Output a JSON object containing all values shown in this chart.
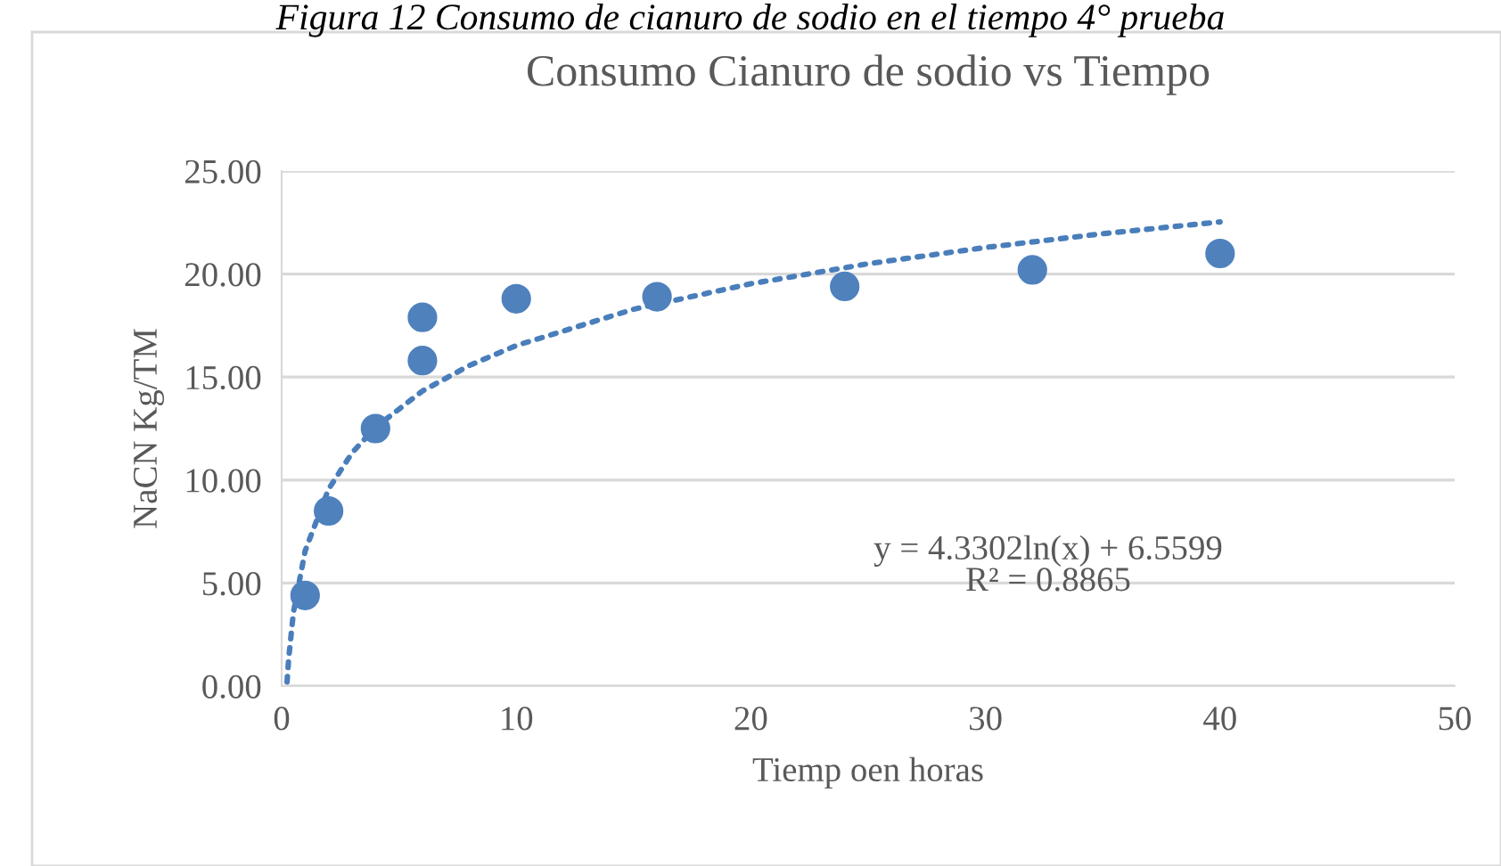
{
  "chart_data": {
    "type": "scatter",
    "title": "Consumo Cianuro de sodio vs Tiempo",
    "xlabel": "Tiemp oen horas",
    "ylabel": "NaCN Kg/TM",
    "annotations": [
      "Figura 12 Consumo de cianuro de sodio en el tiempo 4° prueba",
      "y = 4.3302ln(x) + 6.5599",
      "R² = 0.8865"
    ],
    "x": [
      1,
      2,
      4,
      6,
      6,
      10,
      16,
      24,
      32,
      40
    ],
    "series": [
      {
        "color": "#4f81bd",
        "marker": "circle",
        "values": [
          4.4,
          8.5,
          12.5,
          15.8,
          17.9,
          18.8,
          18.9,
          19.4,
          20.2,
          21.0
        ]
      },
      {
        "type": "line",
        "line_style": "dotted",
        "marker": "none",
        "color": "#4a7ebb",
        "x": [
          0.23,
          0.3,
          0.5,
          1,
          2,
          3,
          4,
          6,
          8,
          10,
          15,
          20,
          25,
          30,
          35,
          40
        ],
        "values": [
          0.2,
          1.35,
          3.56,
          6.56,
          9.56,
          11.32,
          12.56,
          14.32,
          15.56,
          16.53,
          18.29,
          19.53,
          20.5,
          21.29,
          21.96,
          22.53
        ]
      }
    ],
    "xlim": [
      0,
      50
    ],
    "xticks": [
      0,
      10,
      20,
      30,
      40,
      50
    ],
    "ylim": [
      0,
      25
    ],
    "yticks": [
      {
        "value": 0,
        "label": "0.00"
      },
      {
        "value": 5,
        "label": "5.00"
      },
      {
        "value": 10,
        "label": "10.00"
      },
      {
        "value": 15,
        "label": "15.00"
      },
      {
        "value": 20,
        "label": "20.00"
      },
      {
        "value": 25,
        "label": "25.00"
      }
    ],
    "grid": "y",
    "legend": false
  }
}
